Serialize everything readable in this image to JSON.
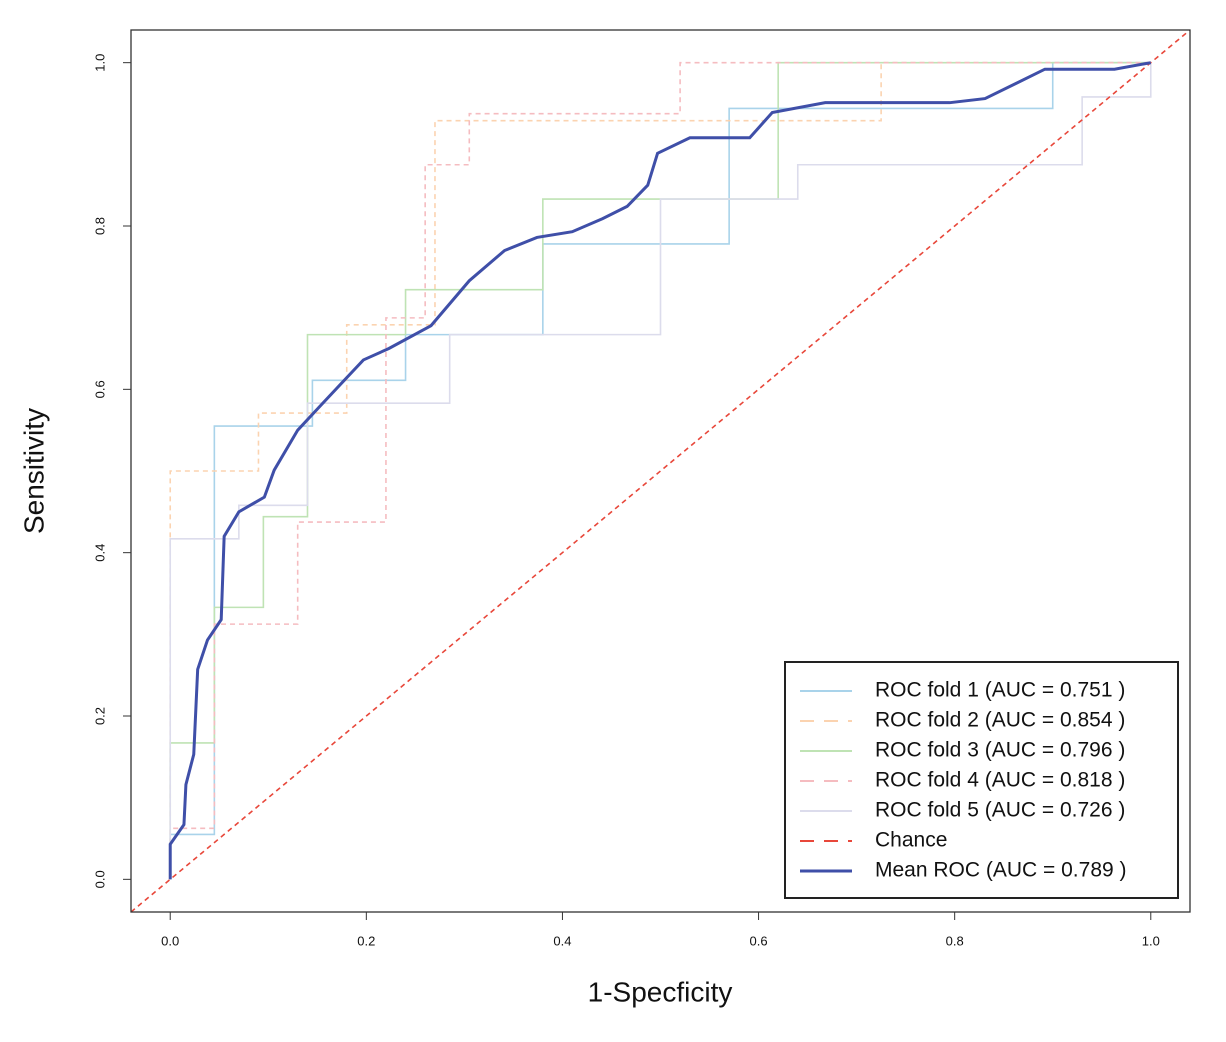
{
  "chart_data": {
    "type": "line",
    "xlabel": "1-Specficity",
    "ylabel": "Sensitivity",
    "xlim": [
      -0.04,
      1.04
    ],
    "ylim": [
      -0.04,
      1.04
    ],
    "xticks": [
      {
        "value": 0,
        "label": "0.0"
      },
      0.2,
      0.4,
      0.6,
      0.8,
      {
        "value": 1,
        "label": "1.0"
      }
    ],
    "yticks": [
      {
        "value": 0,
        "label": "0.0"
      },
      0.2,
      0.4,
      0.6,
      0.8,
      {
        "value": 1,
        "label": "1.0"
      }
    ],
    "legend": "bottom-right",
    "series": [
      {
        "name": "ROC fold 1 (AUC = 0.751 )",
        "color": "#a9d3ea",
        "dashed": false,
        "x": [
          0,
          0,
          0.045,
          0.045,
          0.145,
          0.145,
          0.24,
          0.24,
          0.38,
          0.38,
          0.57,
          0.57,
          0.9,
          0.9,
          1
        ],
        "values": [
          0,
          0.055,
          0.055,
          0.555,
          0.555,
          0.611,
          0.611,
          0.667,
          0.667,
          0.778,
          0.778,
          0.944,
          0.944,
          1,
          1
        ]
      },
      {
        "name": "ROC fold 2 (AUC = 0.854 )",
        "color": "#fbd3b0",
        "dashed": true,
        "x": [
          0,
          0,
          0.09,
          0.09,
          0.18,
          0.18,
          0.27,
          0.27,
          0.725,
          0.725,
          1
        ],
        "values": [
          0,
          0.5,
          0.5,
          0.571,
          0.571,
          0.679,
          0.679,
          0.929,
          0.929,
          1,
          1
        ]
      },
      {
        "name": "ROC fold 3 (AUC = 0.796 )",
        "color": "#bfe3b4",
        "dashed": false,
        "x": [
          0,
          0,
          0.045,
          0.045,
          0.095,
          0.095,
          0.14,
          0.14,
          0.24,
          0.24,
          0.38,
          0.38,
          0.62,
          0.62,
          1
        ],
        "values": [
          0,
          0.167,
          0.167,
          0.333,
          0.333,
          0.444,
          0.444,
          0.667,
          0.667,
          0.722,
          0.722,
          0.833,
          0.833,
          1,
          1
        ]
      },
      {
        "name": "ROC fold 4 (AUC = 0.818 )",
        "color": "#f5bcc0",
        "dashed": true,
        "x": [
          0,
          0,
          0.045,
          0.045,
          0.13,
          0.13,
          0.22,
          0.22,
          0.26,
          0.26,
          0.305,
          0.305,
          0.52,
          0.52,
          1
        ],
        "values": [
          0,
          0.0625,
          0.0625,
          0.3125,
          0.3125,
          0.4375,
          0.4375,
          0.6875,
          0.6875,
          0.875,
          0.875,
          0.9375,
          0.9375,
          1,
          1
        ]
      },
      {
        "name": "ROC fold 5 (AUC = 0.726 )",
        "color": "#dcdcec",
        "dashed": false,
        "x": [
          0,
          0,
          0.07,
          0.07,
          0.14,
          0.14,
          0.285,
          0.285,
          0.5,
          0.5,
          0.64,
          0.64,
          0.715,
          0.715,
          0.93,
          0.93,
          1,
          1
        ],
        "values": [
          0,
          0.417,
          0.417,
          0.458,
          0.458,
          0.583,
          0.583,
          0.667,
          0.667,
          0.833,
          0.833,
          0.875,
          0.875,
          0.875,
          0.875,
          0.958,
          0.958,
          1
        ]
      },
      {
        "name": "Chance",
        "color": "#e8473a",
        "dashed": true,
        "x": [
          -0.04,
          1.04
        ],
        "values": [
          -0.04,
          1.04
        ]
      },
      {
        "name": "Mean ROC (AUC = 0.789 )",
        "color": "#3f4fa8",
        "dashed": false,
        "bold": true,
        "x": [
          0,
          0,
          0.014,
          0.016,
          0.024,
          0.028,
          0.038,
          0.052,
          0.055,
          0.07,
          0.096,
          0.106,
          0.13,
          0.154,
          0.197,
          0.223,
          0.266,
          0.305,
          0.341,
          0.374,
          0.41,
          0.441,
          0.466,
          0.487,
          0.497,
          0.53,
          0.591,
          0.614,
          0.668,
          0.795,
          0.831,
          0.892,
          0.963,
          1
        ],
        "values": [
          0,
          0.043,
          0.067,
          0.116,
          0.153,
          0.257,
          0.293,
          0.318,
          0.42,
          0.45,
          0.468,
          0.501,
          0.55,
          0.581,
          0.636,
          0.65,
          0.678,
          0.733,
          0.77,
          0.786,
          0.793,
          0.809,
          0.824,
          0.85,
          0.889,
          0.908,
          0.908,
          0.939,
          0.951,
          0.951,
          0.956,
          0.992,
          0.992,
          1
        ]
      }
    ]
  }
}
